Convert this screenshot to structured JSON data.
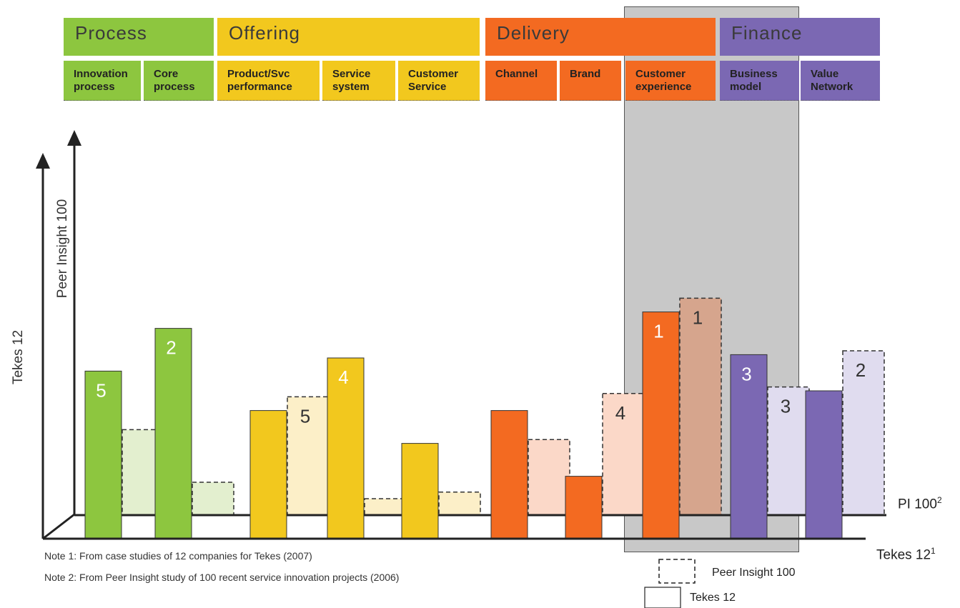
{
  "bands": [
    {
      "title": "Process",
      "color": "#8dc63f"
    },
    {
      "title": "Offering",
      "color": "#f2c81e"
    },
    {
      "title": "Delivery",
      "color": "#f36a21"
    },
    {
      "title": "Finance",
      "color": "#7b68b3"
    }
  ],
  "subcategories": [
    {
      "label": "Innovation\nprocess",
      "band": 0
    },
    {
      "label": "Core\nprocess",
      "band": 0
    },
    {
      "label": "Product/Svc\nperformance",
      "band": 1
    },
    {
      "label": "Service\nsystem",
      "band": 1
    },
    {
      "label": "Customer\nService",
      "band": 1
    },
    {
      "label": "Channel",
      "band": 2
    },
    {
      "label": "Brand",
      "band": 2
    },
    {
      "label": "Customer\nexperience",
      "band": 2
    },
    {
      "label": "Business\nmodel",
      "band": 3
    },
    {
      "label": "Value\nNetwork",
      "band": 3
    }
  ],
  "chart_data": {
    "type": "bar",
    "categories": [
      "Innovation process",
      "Core process",
      "Product/Svc performance",
      "Service system",
      "Customer Service",
      "Channel",
      "Brand",
      "Customer experience",
      "Business model",
      "Value Network"
    ],
    "series": [
      {
        "name": "Tekes 12",
        "values": [
          5.1,
          6.4,
          3.9,
          5.5,
          2.9,
          3.9,
          1.9,
          6.9,
          5.6,
          4.5
        ],
        "rank_labels": [
          "5",
          "2",
          "",
          "4",
          "",
          "",
          "",
          "1",
          "3",
          ""
        ]
      },
      {
        "name": "Peer Insight 100",
        "values": [
          2.6,
          1.0,
          3.6,
          0.5,
          0.7,
          2.3,
          3.7,
          6.6,
          3.9,
          5.0
        ],
        "rank_labels": [
          "",
          "",
          "5",
          "",
          "",
          "",
          "4",
          "1",
          "3",
          "2"
        ]
      }
    ],
    "ylim": [
      0,
      10
    ],
    "axis_labels": {
      "outer": "Tekes 12",
      "inner": "Peer Insight 100"
    },
    "reference_lines": [
      {
        "label": "PI 100",
        "sup": "2"
      },
      {
        "label": "Tekes 12",
        "sup": "1"
      }
    ],
    "highlight_category": "Customer experience",
    "legend": [
      {
        "label": "Peer Insight 100",
        "style": "dashed"
      },
      {
        "label": "Tekes 12",
        "style": "solid"
      }
    ]
  },
  "colors": {
    "process": "#8dc63f",
    "process_light": "#e3efcf",
    "offering": "#f2c81e",
    "offering_light": "#fcefc8",
    "delivery": "#f36a21",
    "delivery_light": "#fbd8c8",
    "finance": "#7b68b3",
    "finance_light": "#e0dcef",
    "highlight": "#c8c8c8"
  },
  "notes": [
    "Note 1: From case studies of 12 companies for Tekes (2007)",
    "Note 2: From Peer Insight study of 100 recent service innovation projects (2006)"
  ]
}
